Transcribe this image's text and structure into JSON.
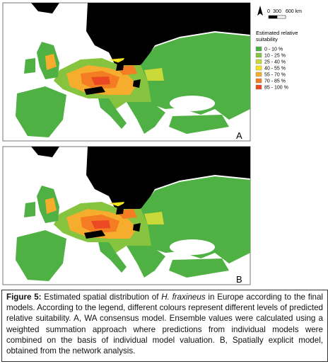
{
  "figure": {
    "panels": [
      {
        "label": "A"
      },
      {
        "label": "B"
      }
    ],
    "scale": {
      "labels": [
        "0",
        "300",
        "600 km"
      ]
    },
    "legend": {
      "title_lines": [
        "Estimated relative",
        "suitability"
      ],
      "items": [
        {
          "label": "0 - 10 %",
          "color": "#4fb043"
        },
        {
          "label": "10 - 25 %",
          "color": "#86c440"
        },
        {
          "label": "25 - 40 %",
          "color": "#c9d93a"
        },
        {
          "label": "40 - 55 %",
          "color": "#f4e31f"
        },
        {
          "label": "55 - 70 %",
          "color": "#f6ad2d"
        },
        {
          "label": "70 - 85 %",
          "color": "#f47c22"
        },
        {
          "label": "85 - 100 %",
          "color": "#ec4824"
        }
      ]
    },
    "caption": {
      "label": "Figure 5:",
      "text_1": " Estimated spatial distribution of ",
      "species": "H. fraxineus",
      "text_2": " in Europe according to the final models. According to the legend, different colours represent different levels of predicted relative suitability. A, WA consensus model. Ensemble values were calculated using a weighted summation approach where predictions from individual models were combined on the basis of individual model valuation. B, Spatially explicit model, obtained from the network analysis."
    }
  }
}
